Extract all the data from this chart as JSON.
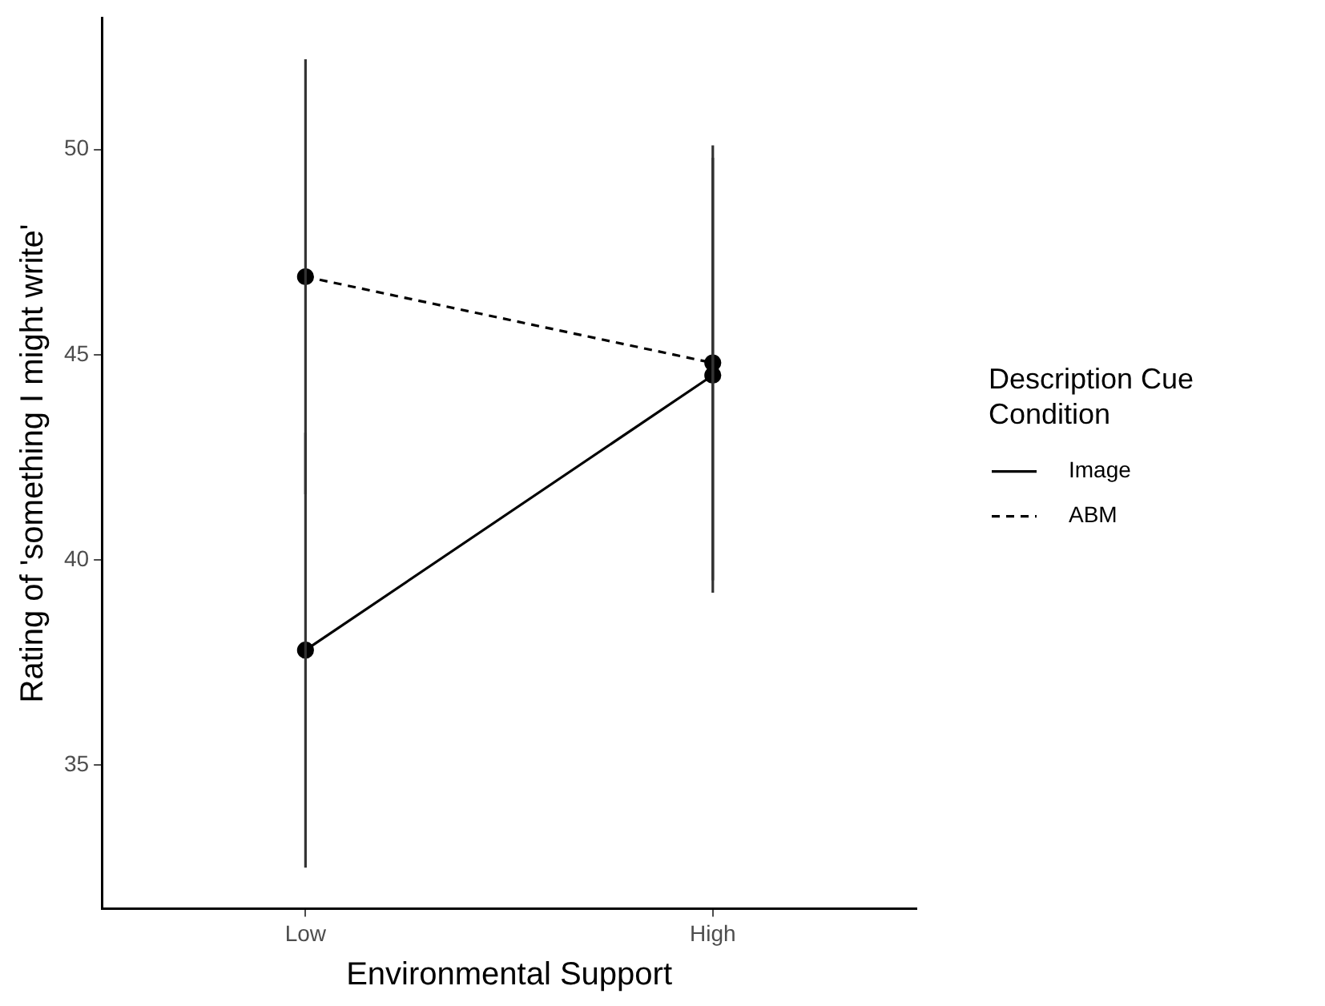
{
  "chart_data": {
    "type": "line",
    "xlabel": "Environmental Support",
    "ylabel": "Rating of 'something I might write'",
    "legend_title": "Description Cue Condition",
    "categories": [
      "Low",
      "High"
    ],
    "series": [
      {
        "name": "Image",
        "color": "#000000",
        "values": [
          37.8,
          44.5
        ],
        "errors": [
          5.3,
          5.3
        ],
        "line_style": "solid"
      },
      {
        "name": "ABM",
        "color": "#000000",
        "values": [
          46.9,
          44.8
        ],
        "errors": [
          5.3,
          5.3
        ],
        "line_style": "dashed"
      }
    ],
    "ylim": [
      31.5,
      53.2
    ],
    "yticks": [
      35,
      40,
      45,
      50
    ],
    "grid": false,
    "legend": "right",
    "marker": "circle"
  }
}
